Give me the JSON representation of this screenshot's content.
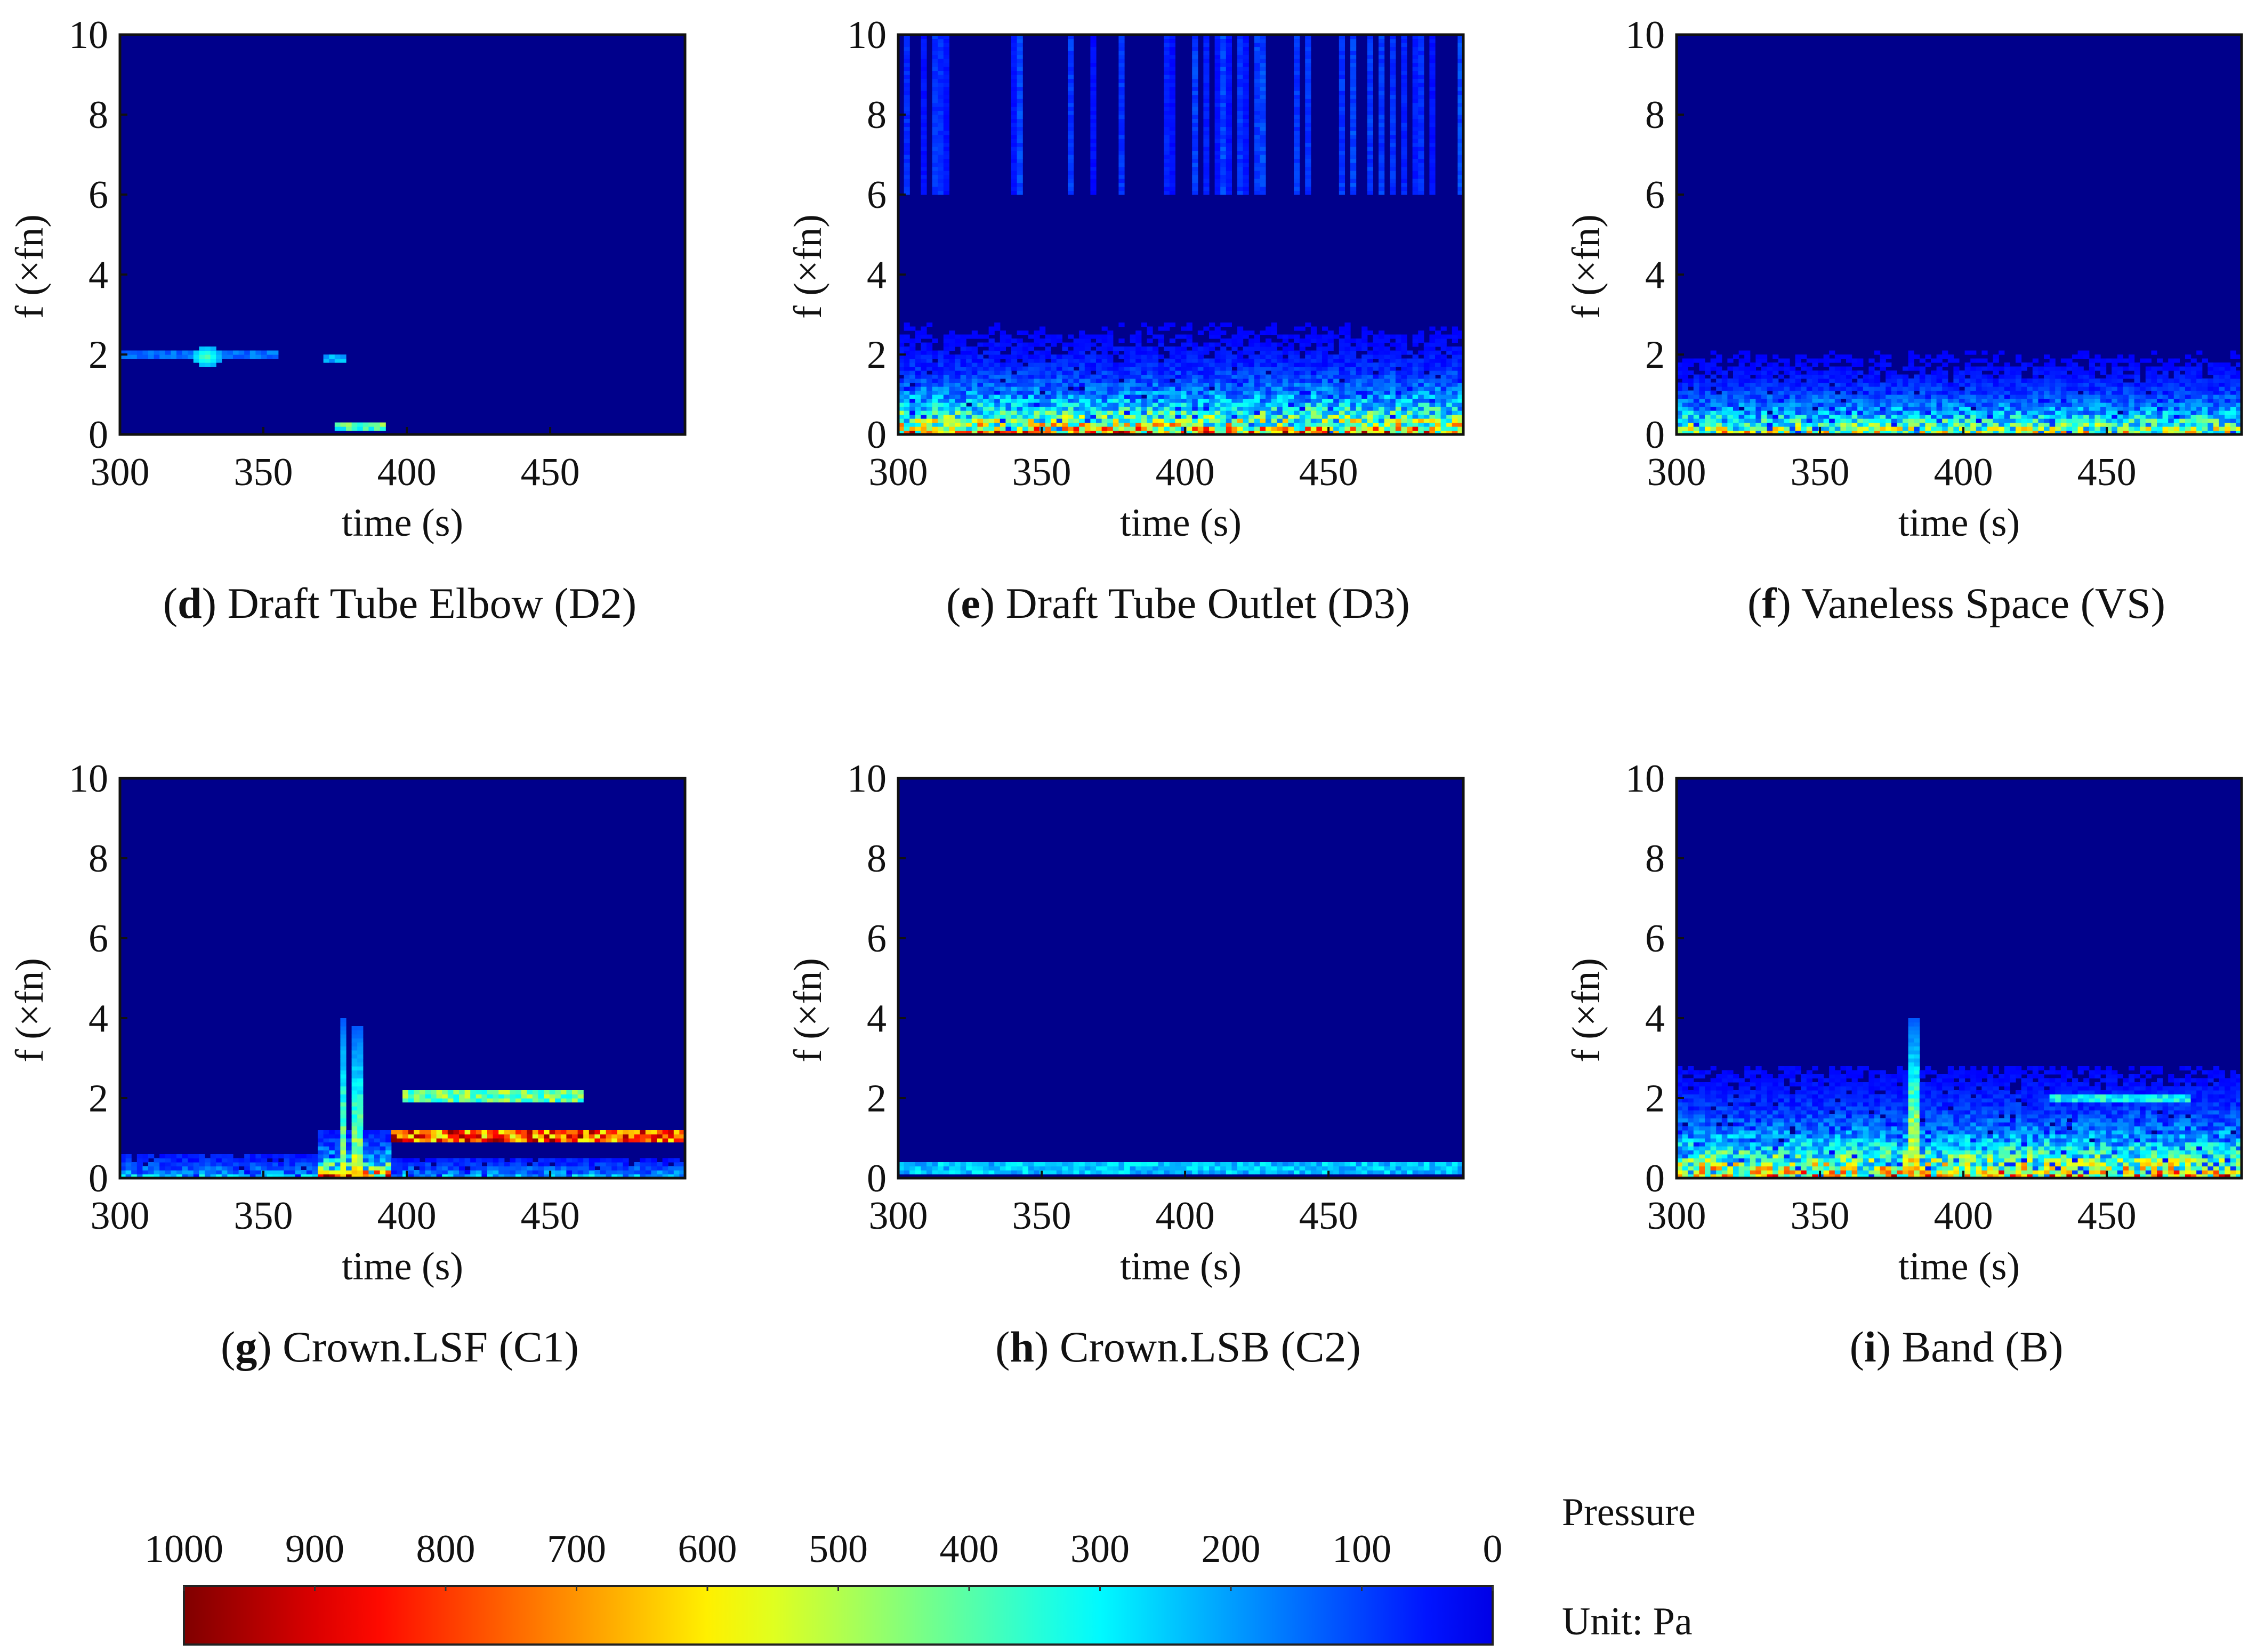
{
  "chart_data": [
    {
      "id": "d",
      "type": "heatmap",
      "letter": "d",
      "title": "Draft Tube Elbow (D2)",
      "xlabel": "time (s)",
      "ylabel": "f (×fn)",
      "xlim": [
        300,
        497
      ],
      "ylim": [
        0,
        10
      ],
      "xticks": [
        "300",
        "350",
        "400",
        "450"
      ],
      "yticks": [
        "0",
        "2",
        "4",
        "6",
        "8",
        "10"
      ],
      "features": [
        {
          "kind": "line",
          "t": [
            300,
            355
          ],
          "f": 1.98,
          "intensity": 180,
          "width": 0.08
        },
        {
          "kind": "spot",
          "t": 330,
          "f": 1.95,
          "intensity": 420
        },
        {
          "kind": "line",
          "t": [
            370,
            378
          ],
          "f": 1.9,
          "intensity": 300,
          "width": 0.1
        },
        {
          "kind": "line",
          "t": [
            375,
            393
          ],
          "f": 0.2,
          "intensity": 480,
          "width": 0.15
        }
      ]
    },
    {
      "id": "e",
      "type": "heatmap",
      "letter": "e",
      "title": "Draft Tube Outlet (D3)",
      "xlabel": "time (s)",
      "ylabel": "f (×fn)",
      "xlim": [
        300,
        497
      ],
      "ylim": [
        0,
        10
      ],
      "xticks": [
        "300",
        "350",
        "400",
        "450"
      ],
      "yticks": [
        "0",
        "2",
        "4",
        "6",
        "8",
        "10"
      ],
      "features": [
        {
          "kind": "band",
          "t": [
            300,
            497
          ],
          "intensity": 900,
          "decay": 0.75,
          "reach": 3.0
        }
      ]
    },
    {
      "id": "f",
      "type": "heatmap",
      "letter": "f",
      "title": "Vaneless Space (VS)",
      "xlabel": "time (s)",
      "ylabel": "f (×fn)",
      "xlim": [
        300,
        497
      ],
      "ylim": [
        0,
        10
      ],
      "xticks": [
        "300",
        "350",
        "400",
        "450"
      ],
      "yticks": [
        "0",
        "2",
        "4",
        "6",
        "8",
        "10"
      ],
      "features": [
        {
          "kind": "band",
          "t": [
            300,
            497
          ],
          "intensity": 720,
          "decay": 0.6,
          "reach": 2.5
        }
      ]
    },
    {
      "id": "g",
      "type": "heatmap",
      "letter": "g",
      "title": "Crown.LSF (C1)",
      "xlabel": "time (s)",
      "ylabel": "f (×fn)",
      "xlim": [
        300,
        497
      ],
      "ylim": [
        0,
        10
      ],
      "xticks": [
        "300",
        "350",
        "400",
        "450"
      ],
      "yticks": [
        "0",
        "2",
        "4",
        "6",
        "8",
        "10"
      ],
      "features": [
        {
          "kind": "band",
          "t": [
            300,
            370
          ],
          "intensity": 330,
          "decay": 0.35,
          "reach": 0.6
        },
        {
          "kind": "band",
          "t": [
            368,
            395
          ],
          "intensity": 950,
          "decay": 0.45,
          "reach": 1.2
        },
        {
          "kind": "spike",
          "t": 378,
          "f": [
            0,
            4.0
          ],
          "intensity": 500
        },
        {
          "kind": "spike",
          "t": 383,
          "f": [
            0,
            3.8
          ],
          "intensity": 500
        },
        {
          "kind": "line",
          "t": [
            395,
            497
          ],
          "f": 1.05,
          "intensity": 960,
          "width": 0.16
        },
        {
          "kind": "line",
          "t": [
            398,
            462
          ],
          "f": 2.05,
          "intensity": 520,
          "width": 0.12
        },
        {
          "kind": "band",
          "t": [
            395,
            497
          ],
          "intensity": 330,
          "decay": 0.3,
          "reach": 0.5
        }
      ]
    },
    {
      "id": "h",
      "type": "heatmap",
      "letter": "h",
      "title": "Crown.LSB (C2)",
      "xlabel": "time (s)",
      "ylabel": "f (×fn)",
      "xlim": [
        300,
        497
      ],
      "ylim": [
        0,
        10
      ],
      "xticks": [
        "300",
        "350",
        "400",
        "450"
      ],
      "yticks": [
        "0",
        "2",
        "4",
        "6",
        "8",
        "10"
      ],
      "features": [
        {
          "kind": "line",
          "t": [
            300,
            497
          ],
          "f": 0.28,
          "intensity": 300,
          "width": 0.15
        }
      ]
    },
    {
      "id": "i",
      "type": "heatmap",
      "letter": "i",
      "title": "Band (B)",
      "xlabel": "time (s)",
      "ylabel": "f (×fn)",
      "xlim": [
        300,
        497
      ],
      "ylim": [
        0,
        10
      ],
      "xticks": [
        "300",
        "350",
        "400",
        "450"
      ],
      "yticks": [
        "0",
        "2",
        "4",
        "6",
        "8",
        "10"
      ],
      "features": [
        {
          "kind": "band",
          "t": [
            300,
            497
          ],
          "intensity": 880,
          "decay": 0.85,
          "reach": 2.8
        },
        {
          "kind": "spike",
          "t": 383,
          "f": [
            0,
            4.0
          ],
          "intensity": 600
        },
        {
          "kind": "line",
          "t": [
            430,
            480
          ],
          "f": 2.0,
          "intensity": 380,
          "width": 0.1
        }
      ]
    }
  ],
  "colorbar": {
    "ticks": [
      "1000",
      "900",
      "800",
      "700",
      "600",
      "500",
      "400",
      "300",
      "200",
      "100",
      "0"
    ],
    "range": [
      1000,
      0
    ],
    "title": "Pressure",
    "unit": "Unit: Pa"
  },
  "colors": {
    "background": "#00008b",
    "text": "#111111"
  }
}
